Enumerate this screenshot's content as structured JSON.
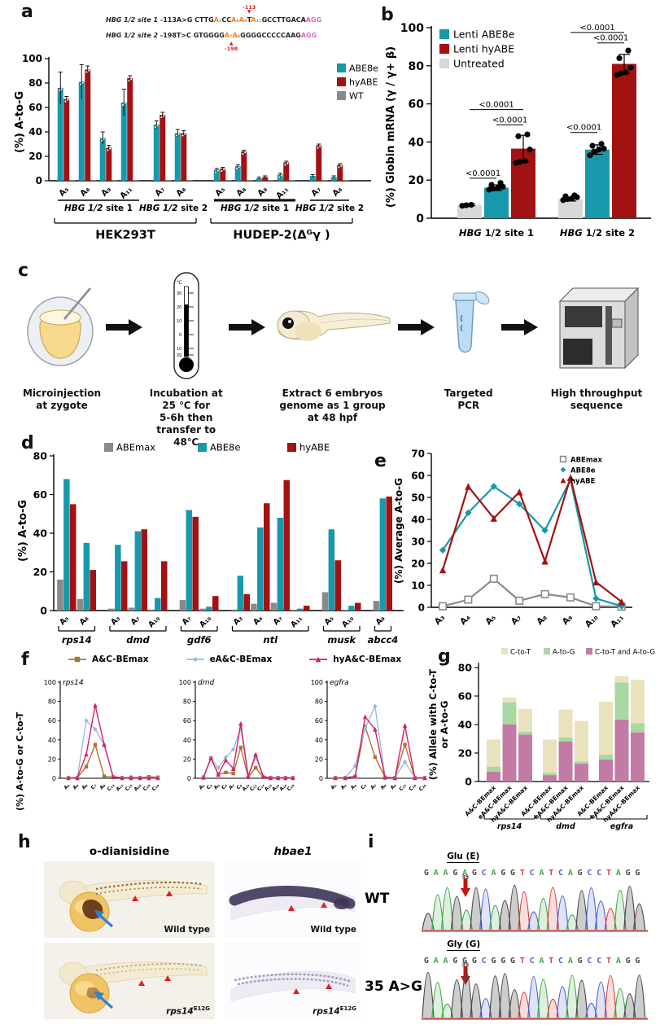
{
  "colors": {
    "teal": "#1898ab",
    "dark_red": "#a31212",
    "gray": "#8a8a8a",
    "light_gray": "#d8d8d8",
    "brown": "#a8762e",
    "light_blue": "#9db9de",
    "magenta": "#d81f68",
    "tan": "#e9e2bd",
    "green": "#a9d8a2",
    "mauve": "#c27ba4",
    "annotation_red": "#e02020"
  },
  "panel_a": {
    "label": "a",
    "sequences": [
      {
        "name": "HBG 1/2 site 1",
        "mut": " -113A>G ",
        "seq": "CTTGA₅CCA₈A₉TA₁₁GCCTTGACA",
        "pam": "AGG",
        "ann": "-113"
      },
      {
        "name": "HBG 1/2 site 2",
        "mut": " -198T>C ",
        "seq": "GTGGGGA₇A₈GGGGCCCCCAAG",
        "pam": "AGG",
        "ann": "-198"
      }
    ],
    "chart_data": {
      "type": "bar",
      "ylabel": "(%) A-to-G",
      "ylim": [
        0,
        100
      ],
      "yticks": [
        0,
        20,
        40,
        60,
        80,
        100
      ],
      "legend": [
        "ABE8e",
        "hyABE",
        "WT"
      ],
      "groups": [
        {
          "cell": "HEK293T",
          "site": "HBG 1/2 site 1",
          "positions": [
            "A₅",
            "A₈",
            "A₉",
            "A₁₁"
          ],
          "series": {
            "ABE8e": [
              76,
              81,
              35,
              64
            ],
            "hyABE": [
              67,
              91,
              27,
              84
            ],
            "WT": [
              0.5,
              0.5,
              0.5,
              0.5
            ]
          },
          "err": {
            "ABE8e": [
              13,
              14,
              5,
              11
            ],
            "hyABE": [
              2,
              3,
              2,
              2
            ]
          }
        },
        {
          "cell": "HEK293T",
          "site": "HBG 1/2 site 2",
          "positions": [
            "A₇",
            "A₈"
          ],
          "series": {
            "ABE8e": [
              46,
              39
            ],
            "hyABE": [
              54,
              39
            ],
            "WT": [
              0.5,
              0.5
            ]
          },
          "err": {
            "ABE8e": [
              3,
              3
            ],
            "hyABE": [
              2,
              2
            ]
          }
        },
        {
          "cell": "HUDEP-2(Δᴳγ )",
          "site": "HBG 1/2 site 1",
          "positions": [
            "A₅",
            "A₈",
            "A₉",
            "A₁₁"
          ],
          "series": {
            "ABE8e": [
              9,
              12,
              2,
              5
            ],
            "hyABE": [
              10,
              24,
              3,
              15
            ],
            "WT": [
              0.5,
              0.5,
              0.5,
              0.5
            ]
          },
          "err": {
            "ABE8e": [
              1,
              1,
              1,
              1
            ],
            "hyABE": [
              1,
              1,
              1,
              1
            ]
          }
        },
        {
          "cell": "HUDEP-2(Δᴳγ )",
          "site": "HBG 1/2 site 2",
          "positions": [
            "A₇",
            "A₈"
          ],
          "series": {
            "ABE8e": [
              4,
              3
            ],
            "hyABE": [
              29,
              13
            ],
            "WT": [
              0.5,
              0.5
            ]
          },
          "err": {
            "ABE8e": [
              1,
              1
            ],
            "hyABE": [
              1,
              1
            ]
          }
        }
      ]
    }
  },
  "panel_b": {
    "label": "b",
    "chart_data": {
      "type": "bar",
      "ylabel": "(%) Globin mRNA (γ / γ+ β)",
      "ylim": [
        0,
        100
      ],
      "yticks": [
        0,
        20,
        40,
        60,
        80,
        100
      ],
      "categories": [
        "HBG 1/2 site 1",
        "HBG 1/2 site 2"
      ],
      "series": [
        {
          "name": "Lenti ABE8e",
          "values": [
            16,
            36
          ],
          "err": [
            1.5,
            2.5
          ],
          "dots": [
            [
              15,
              15.5,
              16,
              16.5,
              17.5,
              18.5
            ],
            [
              33,
              35,
              36,
              36.5,
              38,
              39
            ]
          ]
        },
        {
          "name": "Lenti hyABE",
          "values": [
            36.5,
            81
          ],
          "err": [
            7,
            5
          ],
          "dots": [
            [
              29,
              29.5,
              30,
              36,
              43,
              44
            ],
            [
              75,
              76,
              76.5,
              79,
              84,
              88
            ]
          ]
        },
        {
          "name": "Untreated",
          "values": [
            7,
            10
          ],
          "err": [
            0.5,
            1
          ],
          "dots": [
            [
              6.5,
              6.8,
              7
            ],
            [
              9.5,
              10,
              10.5,
              11,
              11.5,
              12
            ]
          ]
        }
      ],
      "sig": [
        {
          "cat": 0,
          "from": 0,
          "to": 1,
          "y": 21,
          "label": "<0.0001"
        },
        {
          "cat": 0,
          "from": 1,
          "to": 2,
          "y": 49,
          "label": "<0.0001"
        },
        {
          "cat": 0,
          "from": 0,
          "to": 2,
          "y": 57,
          "label": "<0.0001"
        },
        {
          "cat": 1,
          "from": 0,
          "to": 1,
          "y": 45,
          "label": "<0.0001"
        },
        {
          "cat": 1,
          "from": 1,
          "to": 2,
          "y": 92,
          "label": "<0.0001"
        },
        {
          "cat": 1,
          "from": 0,
          "to": 2,
          "y": 97.5,
          "label": "<0.0001"
        }
      ]
    }
  },
  "panel_c": {
    "label": "c",
    "steps": [
      {
        "icon": "zygote-injection",
        "caption": "Microinjection\nat zygote"
      },
      {
        "icon": "thermometer",
        "caption": "Incubation at 25 ℃ for\n5-6h then transfer to 48℃"
      },
      {
        "icon": "zebrafish-embryo",
        "caption": "Extract 6 embryos\ngenome as 1 group\nat 48 hpf"
      },
      {
        "icon": "pcr-tube",
        "caption": "Targeted PCR"
      },
      {
        "icon": "sequencer",
        "caption": "High throughput\nsequence"
      }
    ]
  },
  "panel_d": {
    "label": "d",
    "chart_data": {
      "type": "bar",
      "ylabel": "(%) A-to-G",
      "ylim": [
        0,
        80
      ],
      "yticks": [
        0,
        20,
        40,
        60,
        80
      ],
      "legend": [
        "ABEmax",
        "ABE8e",
        "hyABE"
      ],
      "groups": [
        {
          "gene": "rps14",
          "positions": [
            "A₅",
            "A₈"
          ],
          "ABEmax": [
            16,
            6
          ],
          "ABE8e": [
            68,
            35
          ],
          "hyABE": [
            55,
            21
          ]
        },
        {
          "gene": "dmd",
          "positions": [
            "A₃",
            "A₇",
            "A₁₀"
          ],
          "ABEmax": [
            1,
            1.5,
            0.5
          ],
          "ABE8e": [
            34,
            41,
            6.5
          ],
          "hyABE": [
            25.5,
            42,
            25.5
          ]
        },
        {
          "gene": "gdf6",
          "positions": [
            "A₇",
            "A₁₀"
          ],
          "ABEmax": [
            5.5,
            1
          ],
          "ABE8e": [
            52,
            2
          ],
          "hyABE": [
            48.5,
            7.5
          ]
        },
        {
          "gene": "ntl",
          "positions": [
            "A₃",
            "A₄",
            "A₇",
            "A₁₁"
          ],
          "ABEmax": [
            0.5,
            3.5,
            4,
            0.3
          ],
          "ABE8e": [
            18,
            43,
            48,
            1
          ],
          "hyABE": [
            8.5,
            55.5,
            67.5,
            2.5
          ]
        },
        {
          "gene": "musk",
          "positions": [
            "A₅",
            "A₁₀"
          ],
          "ABEmax": [
            9.5,
            0.3
          ],
          "ABE8e": [
            42,
            2.5
          ],
          "hyABE": [
            26,
            4
          ]
        },
        {
          "gene": "abcc4",
          "positions": [
            "A₉"
          ],
          "ABEmax": [
            5
          ],
          "ABE8e": [
            58
          ],
          "hyABE": [
            59
          ]
        }
      ]
    }
  },
  "panel_e": {
    "label": "e",
    "chart_data": {
      "type": "line",
      "ylabel": "(%) Average A-to-G",
      "ylim": [
        0,
        70
      ],
      "yticks": [
        0,
        10,
        20,
        30,
        40,
        50,
        60,
        70
      ],
      "x": [
        "A₃",
        "A₄",
        "A₅",
        "A₇",
        "A₈",
        "A₉",
        "A₁₀",
        "A₁₁"
      ],
      "series": [
        {
          "name": "ABEmax",
          "marker": "osquare",
          "values": [
            0.5,
            3.5,
            13,
            3,
            6,
            4.5,
            0.5,
            0.3
          ]
        },
        {
          "name": "ABE8e",
          "marker": "diamond",
          "values": [
            26,
            43,
            55,
            47,
            35,
            58,
            4,
            0.5
          ]
        },
        {
          "name": "hyABE",
          "marker": "tri",
          "values": [
            17,
            55,
            40.5,
            52.5,
            21,
            59,
            11.5,
            2.5
          ]
        }
      ]
    }
  },
  "panel_f": {
    "label": "f",
    "ylabel": "(%) A-to-G or C-to-T",
    "legend": [
      "A&C-BEmax",
      "eA&C-BEmax",
      "hyA&C-BEmax"
    ],
    "chart_data": [
      {
        "type": "line",
        "title": "rps14",
        "ylim": [
          0,
          100
        ],
        "yticks": [
          0,
          20,
          40,
          60,
          80,
          100
        ],
        "x": [
          "A₂",
          "A₄",
          "A₆",
          "C₇",
          "A₉",
          "C₁₂",
          "A₁₃",
          "C₁₅",
          "A₁₆",
          "C₁₈",
          "C₁₉"
        ],
        "series": [
          {
            "name": "A&C-BEmax",
            "values": [
              0.5,
              0.5,
              12,
              35,
              2,
              1.5,
              0.5,
              1,
              0.5,
              1.5,
              1
            ]
          },
          {
            "name": "eA&C-BEmax",
            "values": [
              0.5,
              0.5,
              60,
              51,
              35,
              2,
              0.5,
              0.5,
              0.5,
              0.5,
              0.5
            ]
          },
          {
            "name": "hyA&C-BEmax",
            "values": [
              0.5,
              0.5,
              25,
              76,
              35,
              1.5,
              0.5,
              0.5,
              0.5,
              0.5,
              0.5
            ]
          }
        ]
      },
      {
        "type": "line",
        "title": "dmd",
        "ylim": [
          0,
          100
        ],
        "yticks": [
          0,
          20,
          40,
          60,
          80,
          100
        ],
        "x": [
          "A₁",
          "C₂",
          "A₅",
          "C₆",
          "A₇",
          "C₉",
          "A₁₀",
          "C₁₁",
          "C₁₄",
          "A₁₅",
          "A₁₆",
          "A₁₈",
          "C₁₉"
        ],
        "series": [
          {
            "name": "A&C-BEmax",
            "values": [
              1,
              21,
              4,
              6,
              5,
              32,
              1,
              11,
              1,
              0.5,
              0.5,
              0.5,
              0.5
            ]
          },
          {
            "name": "eA&C-BEmax",
            "values": [
              1,
              21,
              11,
              22,
              30,
              52,
              2,
              22,
              2,
              0.5,
              0.5,
              0.5,
              0.5
            ]
          },
          {
            "name": "hyA&C-BEmax",
            "values": [
              1,
              21,
              4,
              19,
              10,
              57,
              2,
              25,
              2,
              0.5,
              0.5,
              0.5,
              0.5
            ]
          }
        ]
      },
      {
        "type": "line",
        "title": "egfra",
        "ylim": [
          0,
          100
        ],
        "yticks": [
          0,
          20,
          40,
          60,
          80,
          100
        ],
        "x": [
          "A₁",
          "A₃",
          "A₄",
          "C₆",
          "A₇",
          "A₈",
          "A₉",
          "C₁₃",
          "C₁₆",
          "C₂₀"
        ],
        "series": [
          {
            "name": "A&C-BEmax",
            "values": [
              0.5,
              0.5,
              2,
              54,
              22,
              1,
              0.5,
              35,
              0.5,
              0.5
            ]
          },
          {
            "name": "eA&C-BEmax",
            "values": [
              0.5,
              0.5,
              13,
              52,
              75,
              1,
              0.5,
              17,
              0.5,
              0.5
            ]
          },
          {
            "name": "hyA&C-BEmax",
            "values": [
              0.5,
              0.5,
              2,
              64,
              51,
              1,
              0.5,
              55,
              0.5,
              0.5
            ]
          }
        ]
      }
    ]
  },
  "panel_g": {
    "label": "g",
    "chart_data": {
      "type": "stacked-bar",
      "ylabel_lines": [
        "(%) Allele with C-to-T",
        "or A-to-G"
      ],
      "ylim": [
        0,
        80
      ],
      "yticks": [
        0,
        20,
        40,
        60,
        80
      ],
      "legend": [
        "C-to-T",
        "A-to-G",
        "C-to-T and A-to-G"
      ],
      "bar_labels": [
        "A&C-BEmax",
        "eA&C-BEmax",
        "hyA&C-BEmax"
      ],
      "groups": [
        {
          "gene": "rps14",
          "both": [
            7,
            40,
            33
          ],
          "atog": [
            3.5,
            15.5,
            2
          ],
          "ctot": [
            19,
            3.5,
            16
          ]
        },
        {
          "gene": "dmd",
          "both": [
            4.5,
            28,
            12.5
          ],
          "atog": [
            1.5,
            3,
            1.5
          ],
          "ctot": [
            23.5,
            19.5,
            28.5
          ]
        },
        {
          "gene": "egfra",
          "both": [
            15.5,
            43.5,
            34.5
          ],
          "atog": [
            3.5,
            26,
            6.5
          ],
          "ctot": [
            37,
            4.5,
            30.5
          ]
        }
      ]
    }
  },
  "panel_h": {
    "label": "h",
    "columns": [
      "o-dianisidine",
      "hbae1"
    ],
    "images": [
      {
        "type": "odia-wt",
        "label": "Wild type"
      },
      {
        "type": "hbae1-wt",
        "label": "Wild type"
      },
      {
        "type": "odia-mut",
        "label_gene": "rps14",
        "label_sup": "E12G"
      },
      {
        "type": "hbae1-mut",
        "label_gene": "rps14",
        "label_sup": "E12G"
      }
    ]
  },
  "panel_i": {
    "label": "i",
    "base_colors": {
      "A": "#44a64a",
      "C": "#4b63c8",
      "G": "#4a4a4a",
      "T": "#d8413c"
    },
    "rows": [
      {
        "name": "WT",
        "aa": "Glu (E)",
        "pos": "35",
        "seq": "GAAGAGCAGGTCATCAGCCTAGG",
        "arrow_index": 4
      },
      {
        "name": "35 A>G",
        "aa": "Gly (G)",
        "pos": "35",
        "seq": "GAAGGGCGGGTCATCAGCCTAGG",
        "arrow_index": 4
      }
    ]
  }
}
